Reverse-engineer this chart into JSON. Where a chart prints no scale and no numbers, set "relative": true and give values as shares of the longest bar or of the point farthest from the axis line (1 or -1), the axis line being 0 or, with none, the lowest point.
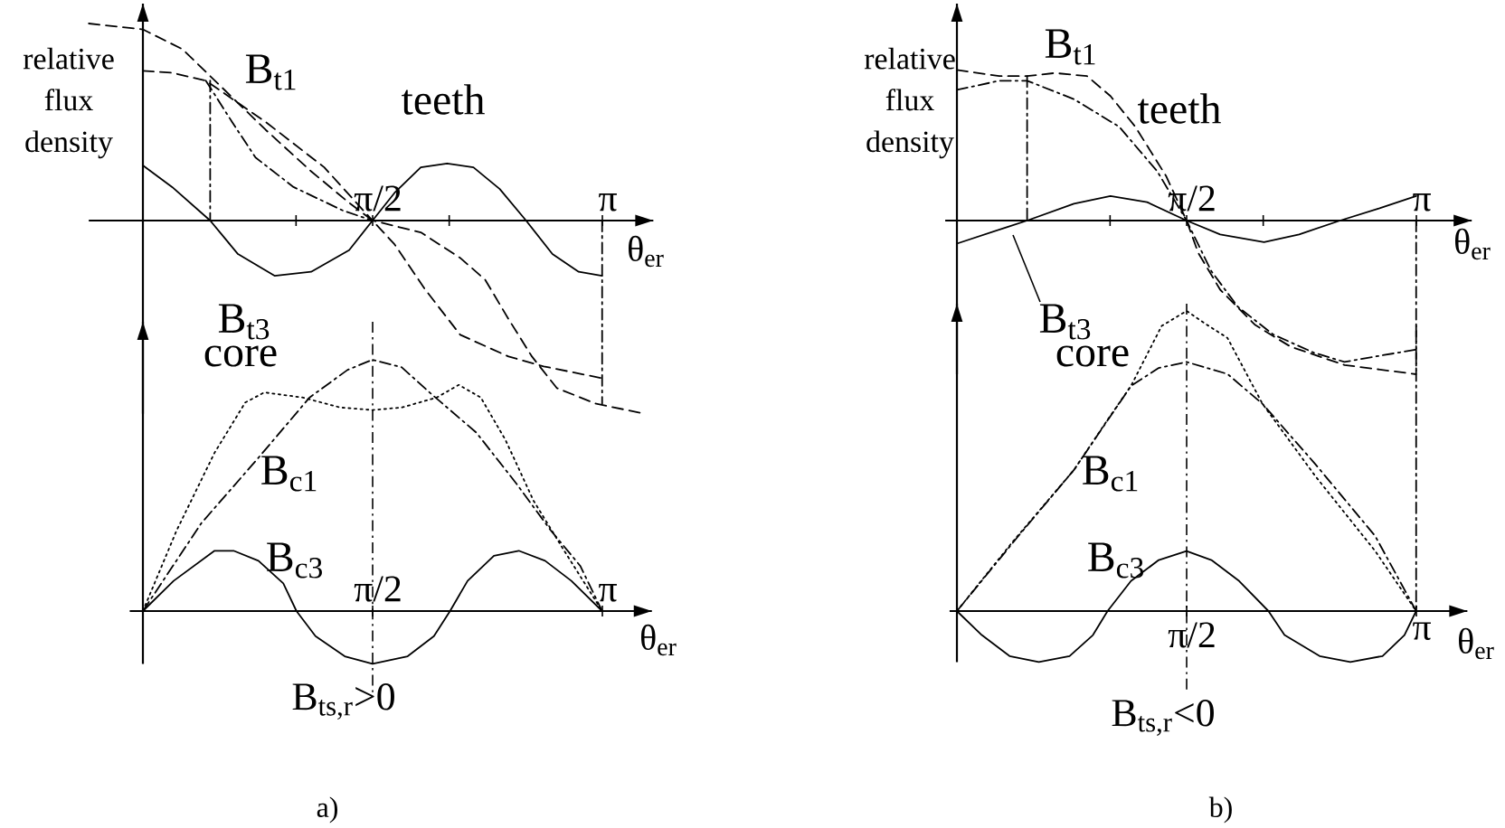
{
  "chart_data": [
    {
      "type": "line",
      "relative": true,
      "ylabel": "relative flux density",
      "xlabel": "θ$_{er}$",
      "annotations": [
        "teeth"
      ],
      "xlim": [
        -0.37,
        3.49
      ],
      "xticks": [
        {
          "value": 1.0472,
          "label": null
        },
        {
          "value": 1.5708,
          "label": "π/2"
        },
        {
          "value": 2.0944,
          "label": null
        },
        {
          "value": 3.1416,
          "label": "π"
        }
      ],
      "tick_labels": "x",
      "series": [
        {
          "name": "B$_{t3}$",
          "color": "#000000",
          "line_style": "solid",
          "x": [
            0,
            0.2,
            0.46,
            0.65,
            0.9,
            1.15,
            1.41,
            1.57,
            1.72,
            1.9,
            2.08,
            2.26,
            2.44,
            2.62,
            2.8,
            2.98,
            3.14
          ],
          "values": [
            0.28,
            0.17,
            0,
            -0.17,
            -0.28,
            -0.26,
            -0.15,
            0,
            0.14,
            0.27,
            0.29,
            0.27,
            0.16,
            0,
            -0.17,
            -0.26,
            -0.28
          ]
        },
        {
          "name": "B$_{t1}$",
          "color": "#000000",
          "line_style": "dashed",
          "x": [
            -0.37,
            0,
            0.27,
            0.52,
            0.84,
            1.15,
            1.41,
            1.57,
            1.72,
            1.93,
            2.17,
            2.5,
            2.74,
            3.14
          ],
          "values": [
            1.0,
            0.97,
            0.87,
            0.69,
            0.46,
            0.25,
            0.09,
            0,
            -0.12,
            -0.35,
            -0.58,
            -0.69,
            -0.74,
            -0.8
          ]
        },
        {
          "color": "#000000",
          "line_style": "dashed",
          "x": [
            0,
            0.2,
            0.43,
            0.84,
            1.24,
            1.57,
            1.9,
            2.17,
            2.34,
            2.5,
            2.66,
            2.83,
            3.1,
            3.43
          ],
          "values": [
            0.76,
            0.75,
            0.71,
            0.5,
            0.27,
            0,
            -0.06,
            -0.19,
            -0.3,
            -0.5,
            -0.69,
            -0.85,
            -0.93,
            -0.98
          ]
        },
        {
          "color": "#000000",
          "line_style": "dashdot",
          "x": [
            0.43,
            0.61,
            0.77,
            1.03,
            1.37,
            1.57
          ],
          "values": [
            0.71,
            0.5,
            0.32,
            0.17,
            0.05,
            0
          ]
        },
        {
          "color": "#000000",
          "line_style": "dashdot",
          "x": [
            0.46,
            0.46
          ],
          "values": [
            0.71,
            0
          ]
        },
        {
          "color": "#000000",
          "line_style": "dashdot",
          "x": [
            3.14,
            3.14
          ],
          "values": [
            0,
            -0.93
          ]
        }
      ]
    },
    {
      "type": "line",
      "relative": true,
      "xlabel": "θ$_{er}$",
      "annotations": [
        "core",
        "B$_{ts,r}$>0",
        "a)"
      ],
      "xlim": [
        -0.09,
        3.48
      ],
      "xticks": [
        {
          "value": 1.5708,
          "label": "π/2"
        },
        {
          "value": 3.1416,
          "label": "π"
        }
      ],
      "tick_labels": "x",
      "ref_lines": [
        {
          "axis": "x",
          "value": 1.5708,
          "line_style": "dashdot"
        }
      ],
      "series": [
        {
          "name": "B$_{c3}$",
          "color": "#000000",
          "line_style": "solid",
          "x": [
            0,
            0.21,
            0.49,
            0.62,
            0.79,
            0.96,
            1.05,
            1.18,
            1.38,
            1.57,
            1.81,
            1.99,
            2.1,
            2.22,
            2.4,
            2.57,
            2.75,
            2.93,
            3.14
          ],
          "values": [
            0,
            0.12,
            0.24,
            0.24,
            0.2,
            0.11,
            0,
            -0.1,
            -0.18,
            -0.21,
            -0.18,
            -0.1,
            0,
            0.12,
            0.22,
            0.24,
            0.2,
            0.12,
            0
          ]
        },
        {
          "name": "B$_{c1}$",
          "color": "#000000",
          "line_style": "dashdot",
          "x": [
            0,
            0.4,
            0.79,
            1.14,
            1.4,
            1.57,
            1.77,
            1.96,
            2.28,
            2.55,
            2.79,
            2.99,
            3.14
          ],
          "values": [
            0,
            0.35,
            0.61,
            0.85,
            0.96,
            1.0,
            0.97,
            0.87,
            0.71,
            0.51,
            0.32,
            0.18,
            0
          ]
        },
        {
          "color": "#000000",
          "line_style": "dotted",
          "x": [
            0,
            0.23,
            0.49,
            0.7,
            0.83,
            1.09,
            1.35,
            1.57,
            1.77,
            2.01,
            2.16,
            2.31,
            2.48,
            2.67,
            2.87,
            3.14
          ],
          "values": [
            0,
            0.32,
            0.63,
            0.83,
            0.87,
            0.85,
            0.81,
            0.8,
            0.81,
            0.85,
            0.9,
            0.85,
            0.68,
            0.44,
            0.25,
            0
          ]
        }
      ]
    },
    {
      "type": "line",
      "relative": true,
      "ylabel": "relative flux density",
      "xlabel": "θ$_{er}$",
      "annotations": [
        "teeth"
      ],
      "xlim": [
        -0.08,
        3.52
      ],
      "xticks": [
        {
          "value": 1.0472,
          "label": null
        },
        {
          "value": 1.5708,
          "label": "π/2"
        },
        {
          "value": 2.0944,
          "label": null
        },
        {
          "value": 3.1416,
          "label": "π"
        }
      ],
      "tick_labels": "x",
      "series": [
        {
          "name": "B$_{t3}$",
          "color": "#000000",
          "line_style": "solid",
          "x": [
            0,
            0.35,
            0.48,
            0.8,
            1.05,
            1.3,
            1.57,
            1.8,
            2.1,
            2.34,
            2.62,
            2.89,
            3.14
          ],
          "values": [
            -0.15,
            -0.04,
            0,
            0.11,
            0.16,
            0.12,
            0,
            -0.09,
            -0.14,
            -0.09,
            0,
            0.08,
            0.16
          ]
        },
        {
          "color": "#000000",
          "line_style": "dashdot",
          "x": [
            0,
            0.29,
            0.48,
            0.8,
            1.11,
            1.37,
            1.57,
            1.74,
            1.92,
            2.16,
            2.44,
            2.65,
            2.89,
            3.14
          ],
          "values": [
            0.85,
            0.91,
            0.91,
            0.79,
            0.61,
            0.32,
            0,
            -0.33,
            -0.56,
            -0.74,
            -0.86,
            -0.92,
            -0.88,
            -0.84
          ]
        },
        {
          "name": "B$_{t1}$",
          "color": "#000000",
          "line_style": "dashed",
          "x": [
            0,
            0.29,
            0.48,
            0.67,
            0.89,
            1.05,
            1.22,
            1.43,
            1.57,
            1.65,
            1.8,
            2.04,
            2.28,
            2.65,
            3.14
          ],
          "values": [
            0.98,
            0.94,
            0.94,
            0.96,
            0.94,
            0.81,
            0.61,
            0.29,
            0,
            -0.21,
            -0.45,
            -0.68,
            -0.82,
            -0.94,
            -1.0
          ]
        },
        {
          "color": "#000000",
          "line_style": "dashdot",
          "x": [
            0.48,
            0.48
          ],
          "values": [
            0.94,
            0
          ]
        },
        {
          "color": "#000000",
          "line_style": "dashdot",
          "x": [
            3.14,
            3.14
          ],
          "values": [
            0,
            -1.0
          ]
        }
      ]
    },
    {
      "type": "line",
      "relative": true,
      "xlabel": "θ$_{er}$",
      "annotations": [
        "core",
        "B$_{ts,r}$<0",
        "b)"
      ],
      "xlim": [
        -0.05,
        3.49
      ],
      "xticks": [
        {
          "value": 1.5708,
          "label": "π/2"
        },
        {
          "value": 3.1416,
          "label": "π"
        }
      ],
      "tick_labels": "x",
      "ref_lines": [
        {
          "axis": "x",
          "value": 1.5708,
          "line_style": "dashdot"
        }
      ],
      "series": [
        {
          "name": "B$_{c3}$",
          "color": "#000000",
          "line_style": "solid",
          "x": [
            0,
            0.17,
            0.36,
            0.56,
            0.77,
            0.93,
            1.03,
            1.19,
            1.38,
            1.57,
            1.74,
            1.93,
            2.13,
            2.24,
            2.48,
            2.69,
            2.91,
            3.06,
            3.14
          ],
          "values": [
            0,
            -0.08,
            -0.15,
            -0.17,
            -0.15,
            -0.08,
            0,
            0.1,
            0.17,
            0.2,
            0.17,
            0.1,
            0,
            -0.08,
            -0.15,
            -0.17,
            -0.15,
            -0.08,
            0
          ]
        },
        {
          "name": "B$_{c1}$",
          "color": "#000000",
          "line_style": "dashdot",
          "x": [
            0,
            0.42,
            0.8,
            1.19,
            1.38,
            1.57,
            1.85,
            2.09,
            2.45,
            2.86,
            3.14
          ],
          "values": [
            0,
            0.25,
            0.47,
            0.75,
            0.81,
            0.83,
            0.79,
            0.69,
            0.49,
            0.25,
            0
          ]
        },
        {
          "color": "#000000",
          "line_style": "dotted",
          "x": [
            0,
            0.38,
            0.8,
            1.02,
            1.19,
            1.4,
            1.57,
            1.69,
            1.85,
            2.09,
            2.45,
            2.86,
            3.14
          ],
          "values": [
            0,
            0.23,
            0.47,
            0.63,
            0.75,
            0.95,
            1.0,
            0.96,
            0.91,
            0.69,
            0.45,
            0.2,
            0
          ]
        },
        {
          "color": "#000000",
          "line_style": "dashdot",
          "x": [
            3.14,
            3.14
          ],
          "values": [
            0.95,
            0
          ]
        }
      ]
    }
  ]
}
